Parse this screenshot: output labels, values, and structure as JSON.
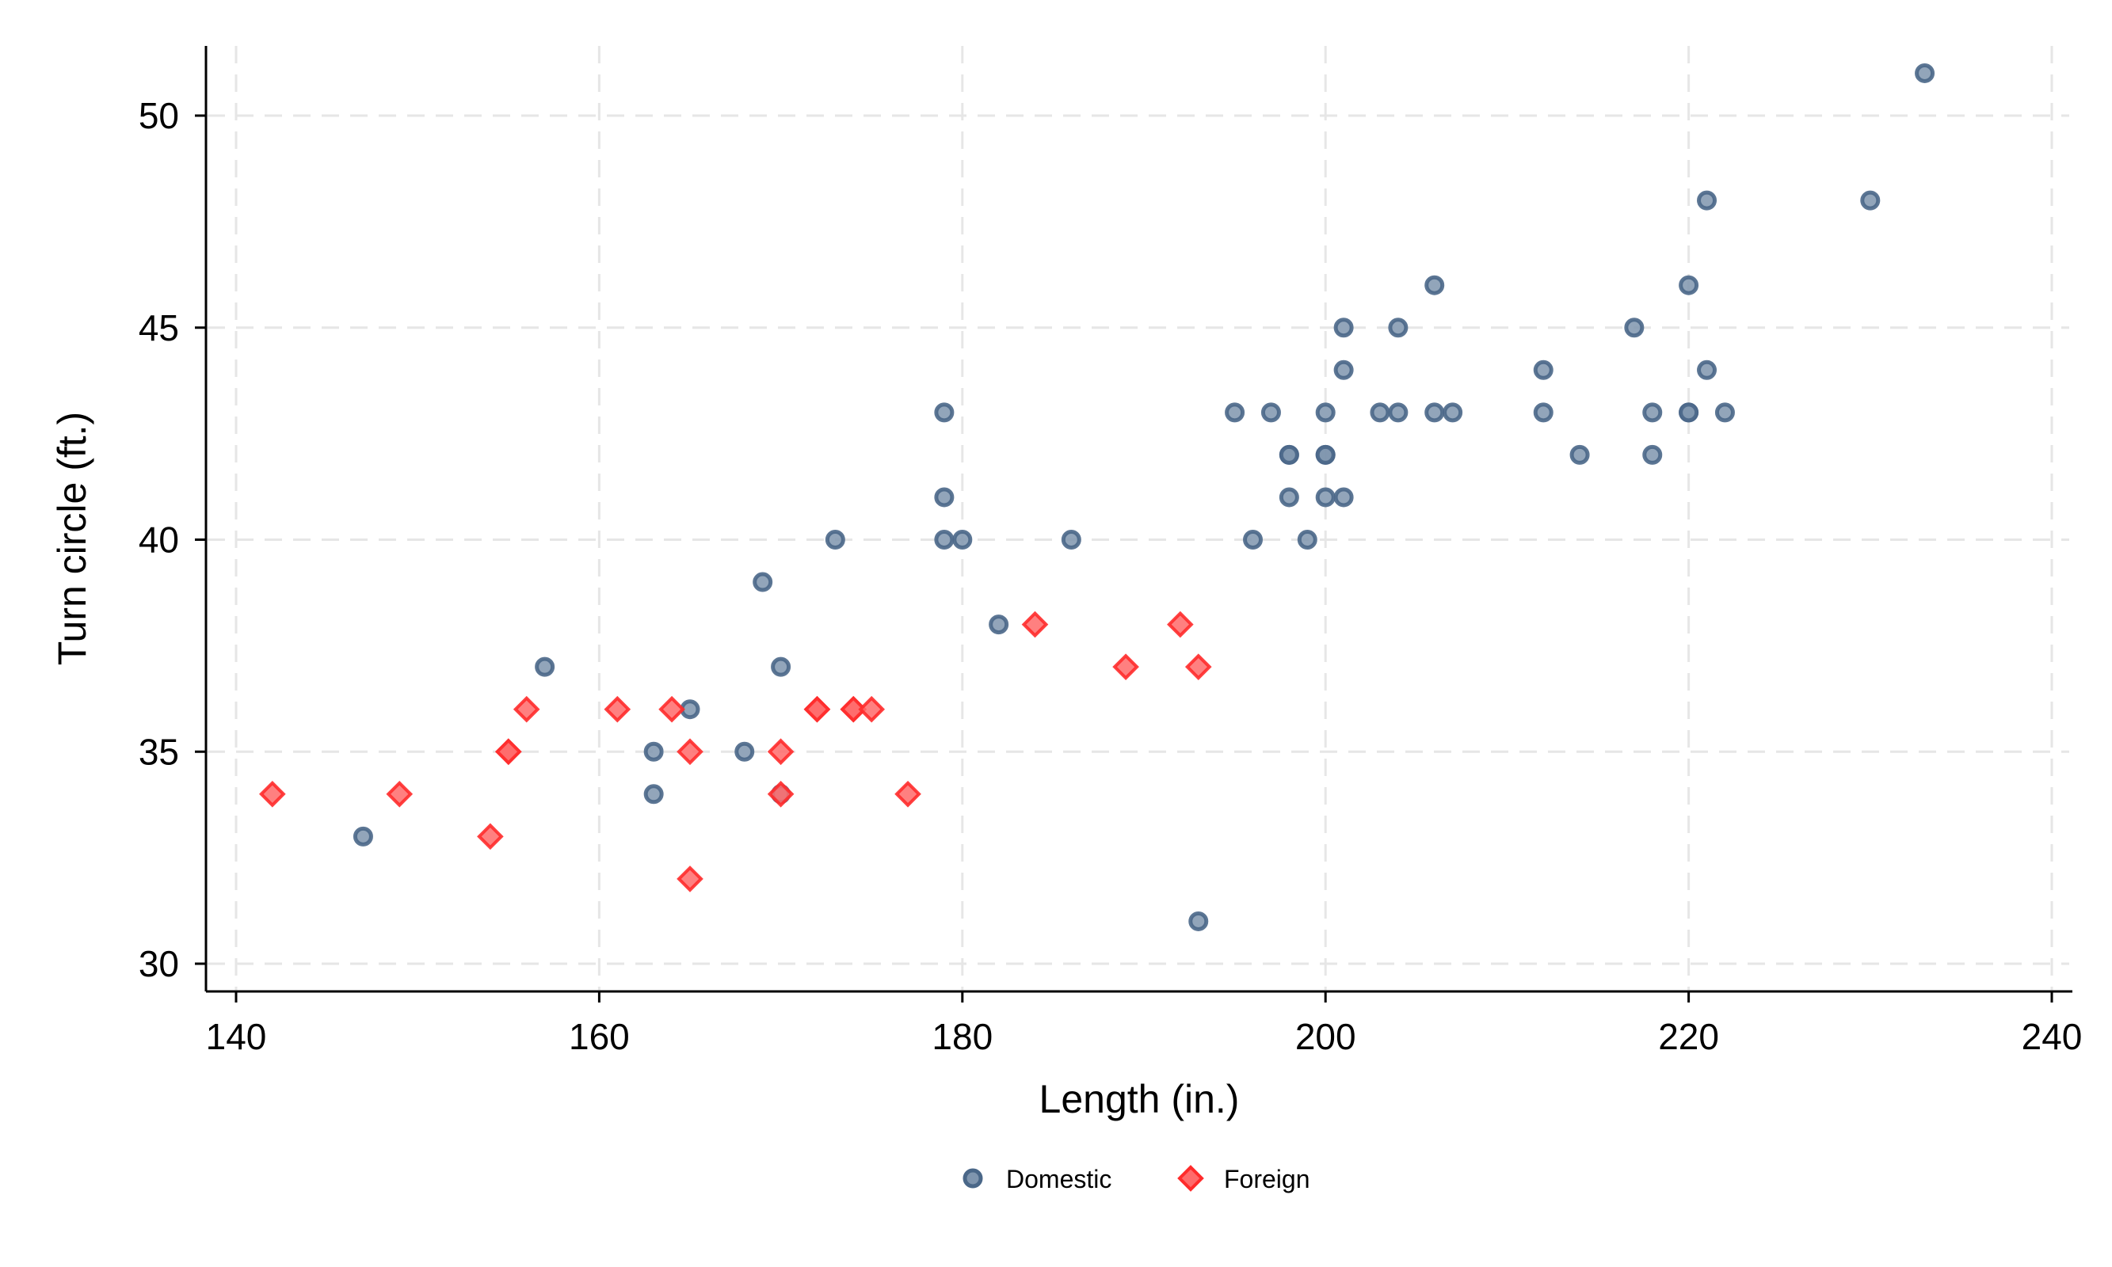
{
  "chart_data": {
    "type": "scatter",
    "title": "",
    "xlabel": "Length (in.)",
    "ylabel": "Turn circle (ft.)",
    "xlim": [
      140,
      240
    ],
    "ylim": [
      30,
      50
    ],
    "xticks": [
      "140",
      "160",
      "180",
      "200",
      "220",
      "240"
    ],
    "yticks": [
      "30",
      "35",
      "40",
      "45",
      "50"
    ],
    "grid": true,
    "legend_position": "bottom",
    "series": [
      {
        "name": "Domestic",
        "color": "#4a6788",
        "marker": "circle",
        "x": [
          147,
          157,
          163,
          163,
          165,
          168,
          169,
          170,
          170,
          173,
          179,
          179,
          179,
          180,
          182,
          186,
          193,
          195,
          196,
          197,
          198,
          198,
          198,
          199,
          200,
          200,
          200,
          200,
          201,
          201,
          201,
          203,
          204,
          204,
          206,
          206,
          207,
          212,
          212,
          214,
          217,
          218,
          218,
          220,
          220,
          220,
          221,
          221,
          222,
          230,
          233
        ],
        "y": [
          33,
          37,
          35,
          34,
          36,
          35,
          39,
          37,
          34,
          40,
          43,
          41,
          40,
          40,
          38,
          40,
          31,
          43,
          40,
          43,
          42,
          42,
          41,
          40,
          43,
          42,
          42,
          41,
          45,
          44,
          41,
          43,
          45,
          43,
          46,
          43,
          43,
          44,
          43,
          42,
          45,
          43,
          42,
          46,
          43,
          43,
          48,
          44,
          43,
          48,
          51
        ]
      },
      {
        "name": "Foreign",
        "color": "#ff2b2b",
        "marker": "diamond",
        "x": [
          142,
          149,
          154,
          155,
          155,
          156,
          161,
          164,
          165,
          165,
          170,
          170,
          172,
          172,
          174,
          174,
          175,
          177,
          184,
          189,
          192,
          193
        ],
        "y": [
          34,
          34,
          33,
          35,
          35,
          36,
          36,
          36,
          35,
          32,
          35,
          34,
          36,
          36,
          36,
          36,
          36,
          34,
          38,
          37,
          38,
          37
        ]
      }
    ]
  }
}
